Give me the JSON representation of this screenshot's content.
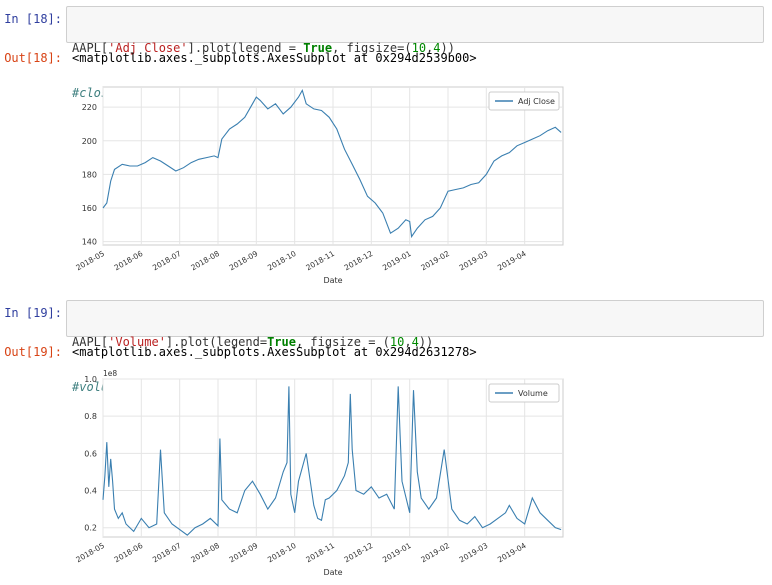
{
  "cells": [
    {
      "in_prompt": "In [18]:",
      "code_tokens": [
        {
          "t": "AAPL[",
          "c": ""
        },
        {
          "t": "'Adj Close'",
          "c": "str"
        },
        {
          "t": "].plot(legend = ",
          "c": ""
        },
        {
          "t": "True",
          "c": "kw"
        },
        {
          "t": ", figsize=(",
          "c": ""
        },
        {
          "t": "10",
          "c": "num"
        },
        {
          "t": ",",
          "c": ""
        },
        {
          "t": "4",
          "c": "num"
        },
        {
          "t": "))",
          "c": ""
        }
      ],
      "comment": "#closing price over past year",
      "out_prompt": "Out[18]:",
      "out_text": "<matplotlib.axes._subplots.AxesSubplot at 0x294d2539b00>"
    },
    {
      "in_prompt": "In [19]:",
      "code_tokens": [
        {
          "t": "AAPL[",
          "c": ""
        },
        {
          "t": "'Volume'",
          "c": "str"
        },
        {
          "t": "].plot(legend=",
          "c": ""
        },
        {
          "t": "True",
          "c": "kw"
        },
        {
          "t": ", figsize = (",
          "c": ""
        },
        {
          "t": "10",
          "c": "num"
        },
        {
          "t": ",",
          "c": ""
        },
        {
          "t": "4",
          "c": "num"
        },
        {
          "t": "))",
          "c": ""
        }
      ],
      "comment": "#volume of stock traded over past year",
      "out_prompt": "Out[19]:",
      "out_text": "<matplotlib.axes._subplots.AxesSubplot at 0x294d2631278>"
    }
  ],
  "colors": {
    "line": "#3a7fb0",
    "grid": "#e5e5e5",
    "frame": "#cccccc"
  },
  "chart_data": [
    {
      "type": "line",
      "title": "",
      "xlabel": "Date",
      "ylabel": "",
      "legend": "top-right",
      "legend_label": "Adj Close",
      "grid": true,
      "xlim": [
        0,
        12
      ],
      "ylim": [
        138,
        232
      ],
      "yticks": [
        140,
        160,
        180,
        200,
        220
      ],
      "ytick_labels": [
        "140",
        "160",
        "180",
        "200",
        "220"
      ],
      "xticks": [
        0,
        1,
        2,
        3,
        4,
        5,
        6,
        7,
        8,
        9,
        10,
        11
      ],
      "xtick_labels": [
        "2018-05",
        "2018-06",
        "2018-07",
        "2018-08",
        "2018-09",
        "2018-10",
        "2018-11",
        "2018-12",
        "2019-01",
        "2019-02",
        "2019-03",
        "2019-04"
      ],
      "offset_label": "",
      "x": [
        0,
        0.1,
        0.2,
        0.3,
        0.5,
        0.7,
        0.9,
        1.1,
        1.3,
        1.5,
        1.7,
        1.9,
        2.1,
        2.3,
        2.5,
        2.7,
        2.9,
        3.0,
        3.1,
        3.3,
        3.5,
        3.7,
        3.9,
        4.0,
        4.1,
        4.3,
        4.5,
        4.7,
        4.9,
        5.1,
        5.2,
        5.3,
        5.5,
        5.7,
        5.9,
        6.1,
        6.3,
        6.5,
        6.7,
        6.9,
        7.1,
        7.3,
        7.5,
        7.7,
        7.9,
        8.0,
        8.05,
        8.2,
        8.4,
        8.6,
        8.8,
        9.0,
        9.2,
        9.4,
        9.6,
        9.8,
        10.0,
        10.2,
        10.4,
        10.6,
        10.8,
        11.0,
        11.2,
        11.4,
        11.6,
        11.8,
        11.95
      ],
      "values": [
        160,
        163,
        176,
        183,
        186,
        185,
        185,
        187,
        190,
        188,
        185,
        182,
        184,
        187,
        189,
        190,
        191,
        190,
        201,
        207,
        210,
        214,
        222,
        226,
        224,
        219,
        222,
        216,
        220,
        226,
        230,
        222,
        219,
        218,
        214,
        207,
        195,
        186,
        177,
        167,
        163,
        157,
        145,
        148,
        153,
        152,
        143,
        148,
        153,
        155,
        160,
        170,
        171,
        172,
        174,
        175,
        180,
        188,
        191,
        193,
        197,
        199,
        201,
        203,
        206,
        208,
        205
      ]
    },
    {
      "type": "line",
      "title": "",
      "xlabel": "Date",
      "ylabel": "",
      "legend": "top-right",
      "legend_label": "Volume",
      "grid": true,
      "xlim": [
        0,
        12
      ],
      "ylim": [
        0.15,
        1.0
      ],
      "yticks": [
        0.2,
        0.4,
        0.6,
        0.8,
        1.0
      ],
      "ytick_labels": [
        "0.2",
        "0.4",
        "0.6",
        "0.8",
        "1.0"
      ],
      "xticks": [
        0,
        1,
        2,
        3,
        4,
        5,
        6,
        7,
        8,
        9,
        10,
        11
      ],
      "xtick_labels": [
        "2018-05",
        "2018-06",
        "2018-07",
        "2018-08",
        "2018-09",
        "2018-10",
        "2018-11",
        "2018-12",
        "2019-01",
        "2019-02",
        "2019-03",
        "2019-04"
      ],
      "offset_label": "1e8",
      "x": [
        0,
        0.05,
        0.1,
        0.15,
        0.2,
        0.25,
        0.3,
        0.4,
        0.5,
        0.6,
        0.8,
        1.0,
        1.2,
        1.4,
        1.5,
        1.6,
        1.8,
        2.0,
        2.2,
        2.4,
        2.6,
        2.8,
        3.0,
        3.05,
        3.1,
        3.3,
        3.5,
        3.7,
        3.9,
        4.1,
        4.3,
        4.5,
        4.7,
        4.8,
        4.85,
        4.9,
        5.0,
        5.1,
        5.3,
        5.5,
        5.6,
        5.7,
        5.8,
        5.9,
        6.1,
        6.3,
        6.4,
        6.45,
        6.5,
        6.6,
        6.8,
        7.0,
        7.2,
        7.4,
        7.6,
        7.7,
        7.75,
        7.8,
        8.0,
        8.1,
        8.2,
        8.3,
        8.5,
        8.7,
        8.9,
        9.1,
        9.3,
        9.5,
        9.7,
        9.9,
        10.1,
        10.3,
        10.5,
        10.6,
        10.8,
        11.0,
        11.2,
        11.4,
        11.6,
        11.8,
        11.95
      ],
      "values": [
        0.35,
        0.48,
        0.66,
        0.42,
        0.57,
        0.45,
        0.3,
        0.25,
        0.28,
        0.22,
        0.18,
        0.25,
        0.2,
        0.22,
        0.62,
        0.28,
        0.22,
        0.19,
        0.16,
        0.2,
        0.22,
        0.25,
        0.21,
        0.68,
        0.35,
        0.3,
        0.28,
        0.4,
        0.45,
        0.38,
        0.3,
        0.36,
        0.5,
        0.55,
        0.96,
        0.38,
        0.28,
        0.45,
        0.6,
        0.32,
        0.25,
        0.24,
        0.35,
        0.36,
        0.4,
        0.48,
        0.55,
        0.92,
        0.62,
        0.4,
        0.38,
        0.42,
        0.36,
        0.38,
        0.3,
        0.96,
        0.7,
        0.45,
        0.28,
        0.94,
        0.5,
        0.36,
        0.3,
        0.36,
        0.62,
        0.3,
        0.24,
        0.22,
        0.26,
        0.2,
        0.22,
        0.25,
        0.28,
        0.32,
        0.25,
        0.22,
        0.36,
        0.28,
        0.24,
        0.2,
        0.19
      ]
    }
  ]
}
